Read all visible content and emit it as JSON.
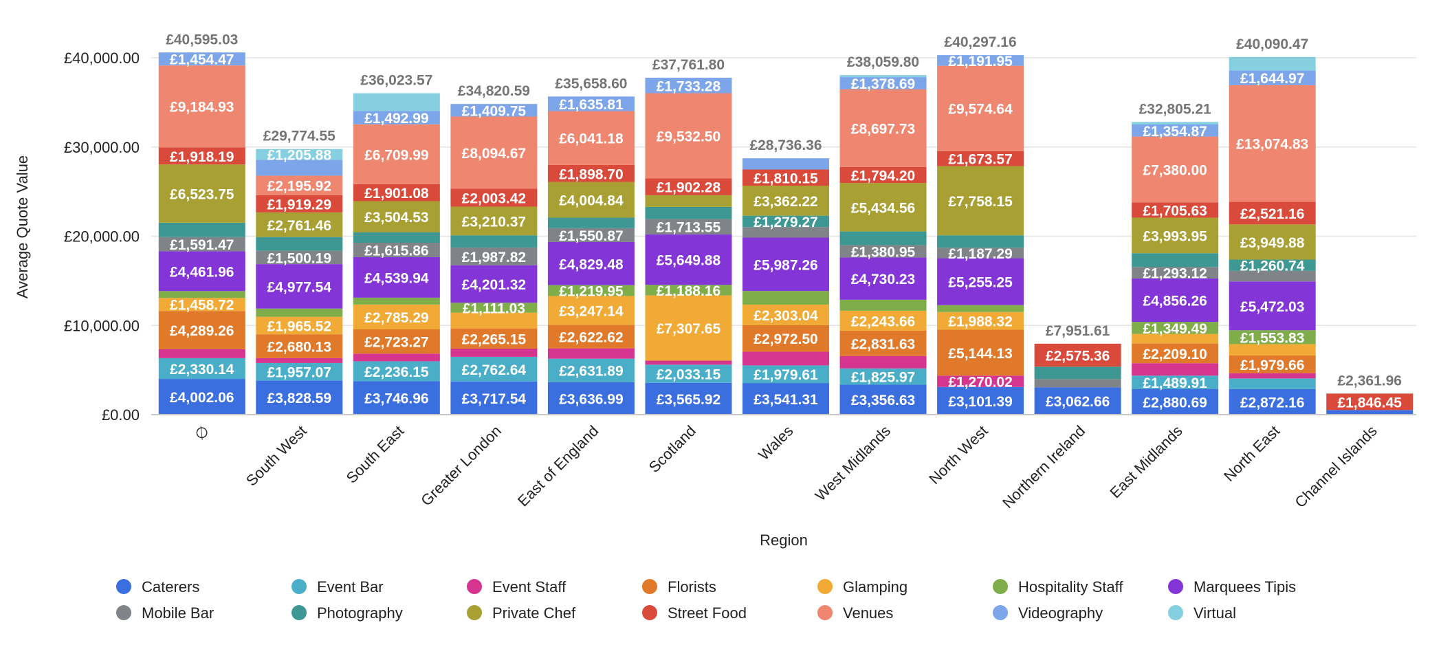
{
  "chart_data": {
    "type": "bar",
    "stacked": true,
    "title": "",
    "xlabel": "Region",
    "ylabel": "Average Quote Value",
    "ylim": [
      0,
      40000
    ],
    "yticks": [
      0,
      10000,
      20000,
      30000,
      40000
    ],
    "ytick_labels": [
      "£0.00",
      "£10,000.00",
      "£20,000.00",
      "£30,000.00",
      "£40,000.00"
    ],
    "grid": true,
    "legend_position": "bottom",
    "categories": [
      "∅",
      "South West",
      "South East",
      "Greater London",
      "East of England",
      "Scotland",
      "Wales",
      "West Midlands",
      "North West",
      "Northern Ireland",
      "East Midlands",
      "North East",
      "Channel Islands"
    ],
    "totals": [
      40595.03,
      29774.55,
      36023.57,
      34820.59,
      35658.6,
      37761.8,
      28736.36,
      38059.8,
      40297.16,
      7951.61,
      32805.21,
      40090.47,
      2361.96
    ],
    "total_labels": [
      "£40,595.03",
      "£29,774.55",
      "£36,023.57",
      "£34,820.59",
      "£35,658.60",
      "£37,761.80",
      "£28,736.36",
      "£38,059.80",
      "£40,297.16",
      "£7,951.61",
      "£32,805.21",
      "£40,090.47",
      "£2,361.96"
    ],
    "series": [
      {
        "name": "Caterers",
        "color": "#3b6fe0",
        "values": [
          4002.06,
          3828.59,
          3746.96,
          3717.54,
          3636.99,
          3565.92,
          3541.31,
          3356.63,
          3101.39,
          3062.66,
          2880.69,
          2872.16,
          515.51
        ],
        "labels": [
          "£4,002.06",
          "£3,828.59",
          "£3,746.96",
          "£3,717.54",
          "£3,636.99",
          "£3,565.92",
          "£3,541.31",
          "£3,356.63",
          "£3,101.39",
          "£3,062.66",
          "£2,880.69",
          "£2,872.16",
          ""
        ]
      },
      {
        "name": "Event Bar",
        "color": "#4aaec8",
        "values": [
          2330.14,
          1957.07,
          2236.15,
          2762.64,
          2631.89,
          2033.15,
          1979.61,
          1825.97,
          0,
          0,
          1489.91,
          1186,
          0
        ],
        "labels": [
          "£2,330.14",
          "£1,957.07",
          "£2,236.15",
          "£2,762.64",
          "£2,631.89",
          "£2,033.15",
          "£1,979.61",
          "£1,825.97",
          "",
          "",
          "£1,489.91",
          "",
          ""
        ]
      },
      {
        "name": "Event Staff",
        "color": "#d5358f",
        "values": [
          1000,
          540,
          850,
          920,
          1160,
          460,
          1533,
          1390,
          1270.02,
          0,
          1390,
          593,
          0
        ],
        "labels": [
          "",
          "",
          "",
          "",
          "",
          "",
          "",
          "",
          "£1,270.02",
          "",
          "",
          "",
          ""
        ]
      },
      {
        "name": "Florists",
        "color": "#e07a2a",
        "values": [
          4289.26,
          2680.13,
          2723.27,
          2265.15,
          2622.62,
          0,
          2972.5,
          2831.63,
          5144.13,
          0,
          2209.1,
          1979.66,
          0
        ],
        "labels": [
          "£4,289.26",
          "£2,680.13",
          "£2,723.27",
          "£2,265.15",
          "£2,622.62",
          "",
          "£2,972.50",
          "£2,831.63",
          "£5,144.13",
          "",
          "£2,209.10",
          "£1,979.66",
          ""
        ]
      },
      {
        "name": "Glamping",
        "color": "#f0aa35",
        "values": [
          1458.72,
          1965.52,
          2785.29,
          1770,
          3247.14,
          7307.65,
          2303.04,
          2243.66,
          1988.32,
          0,
          1080,
          1274,
          0
        ],
        "labels": [
          "£1,458.72",
          "£1,965.52",
          "£2,785.29",
          "",
          "£3,247.14",
          "£7,307.65",
          "£2,303.04",
          "£2,243.66",
          "£1,988.32",
          "",
          "",
          "",
          ""
        ]
      },
      {
        "name": "Hospitality Staff",
        "color": "#7fad4a",
        "values": [
          770,
          920,
          770,
          1111.03,
          1219.95,
          1188.16,
          1533,
          1230,
          770,
          0,
          1349.49,
          1553.83,
          0
        ],
        "labels": [
          "",
          "",
          "",
          "£1,111.03",
          "£1,219.95",
          "£1,188.16",
          "",
          "",
          "",
          "",
          "£1,349.49",
          "£1,553.83",
          ""
        ]
      },
      {
        "name": "Marquees Tipis",
        "color": "#8435d8",
        "values": [
          4461.96,
          4977.54,
          4539.94,
          4201.32,
          4829.48,
          5649.88,
          5987.26,
          4730.23,
          5255.25,
          0,
          4856.26,
          5472.03,
          0
        ],
        "labels": [
          "£4,461.96",
          "£4,977.54",
          "£4,539.94",
          "£4,201.32",
          "£4,829.48",
          "£5,649.88",
          "£5,987.26",
          "£4,730.23",
          "£5,255.25",
          "",
          "£4,856.26",
          "£5,472.03",
          ""
        ]
      },
      {
        "name": "Mobile Bar",
        "color": "#808488",
        "values": [
          1591.47,
          1500.19,
          1615.86,
          1987.82,
          1550.87,
          1713.55,
          1173,
          1380.95,
          1187.29,
          920,
          1293.12,
          1186,
          0
        ],
        "labels": [
          "£1,591.47",
          "£1,500.19",
          "£1,615.86",
          "£1,987.82",
          "£1,550.87",
          "£1,713.55",
          "",
          "£1,380.95",
          "£1,187.29",
          "",
          "£1,293.12",
          "",
          ""
        ]
      },
      {
        "name": "Photography",
        "color": "#3d9793",
        "values": [
          1610.08,
          1540,
          1160,
          1366.88,
          1179.13,
          1365.43,
          1279.27,
          1540,
          1382.45,
          1393.59,
          1540,
          1260.74,
          0
        ],
        "labels": [
          "",
          "",
          "",
          "",
          "",
          "",
          "£1,279.27",
          "",
          "",
          "",
          "",
          "£1,260.74",
          ""
        ]
      },
      {
        "name": "Private Chef",
        "color": "#a8a032",
        "values": [
          6523.75,
          2761.46,
          3504.53,
          3210.37,
          4004.84,
          1310,
          3362.22,
          5434.56,
          7758.15,
          0,
          3993.95,
          3949.88,
          0
        ],
        "labels": [
          "£6,523.75",
          "£2,761.46",
          "£3,504.53",
          "£3,210.37",
          "£4,004.84",
          "",
          "£3,362.22",
          "£5,434.56",
          "£7,758.15",
          "",
          "£3,993.95",
          "£3,949.88",
          ""
        ]
      },
      {
        "name": "Street Food",
        "color": "#d94a3a",
        "values": [
          1918.19,
          1919.29,
          1901.08,
          2003.42,
          1898.7,
          1902.28,
          1810.15,
          1794.2,
          1673.57,
          2575.36,
          1705.63,
          2521.16,
          1846.45
        ],
        "labels": [
          "£1,918.19",
          "£1,919.29",
          "£1,901.08",
          "£2,003.42",
          "£1,898.70",
          "£1,902.28",
          "£1,810.15",
          "£1,794.20",
          "£1,673.57",
          "£2,575.36",
          "£1,705.63",
          "£2,521.16",
          "£1,846.45"
        ]
      },
      {
        "name": "Venues",
        "color": "#ef8670",
        "values": [
          9184.93,
          2195.92,
          6709.99,
          8094.67,
          6041.18,
          9532.5,
          0,
          8697.73,
          9574.64,
          0,
          7380.0,
          13074.83,
          0
        ],
        "labels": [
          "£9,184.93",
          "£2,195.92",
          "£6,709.99",
          "£8,094.67",
          "£6,041.18",
          "£9,532.50",
          "",
          "£8,697.73",
          "£9,574.64",
          "",
          "£7,380.00",
          "£13,074.83",
          ""
        ]
      },
      {
        "name": "Videography",
        "color": "#7da5ea",
        "values": [
          1454.47,
          1782.96,
          1492.99,
          1409.75,
          1635.81,
          1733.28,
          1262,
          1378.69,
          1191.95,
          0,
          1354.87,
          1644.97,
          0
        ],
        "labels": [
          "£1,454.47",
          "",
          "£1,492.99",
          "£1,409.75",
          "£1,635.81",
          "£1,733.28",
          "",
          "£1,378.69",
          "£1,191.95",
          "",
          "£1,354.87",
          "£1,644.97",
          ""
        ]
      },
      {
        "name": "Virtual",
        "color": "#86cfe0",
        "values": [
          0,
          1205.88,
          1987.51,
          0,
          0,
          0,
          0,
          225.55,
          0,
          0,
          282.19,
          1522.21,
          0
        ],
        "labels": [
          "",
          "£1,205.88",
          "",
          "",
          "",
          "",
          "",
          "",
          "",
          "",
          "",
          "",
          ""
        ]
      }
    ]
  }
}
